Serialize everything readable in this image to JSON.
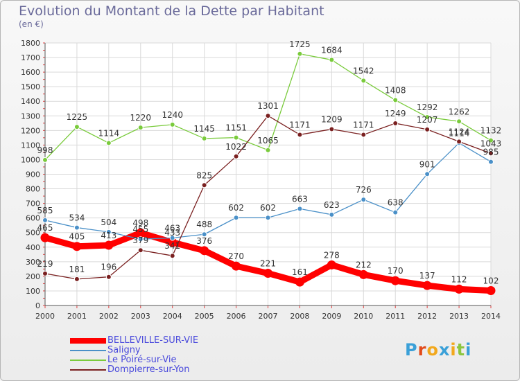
{
  "header": {
    "title": "Evolution du Montant de la Dette par Habitant",
    "subtitle": "(en €)"
  },
  "logo": {
    "text": "Proxiti",
    "colors": [
      "#3aa0d8",
      "#e24a1a",
      "#f2a81c",
      "#3aa0d8",
      "#f2a81c",
      "#8cc63f",
      "#3aa0d8"
    ]
  },
  "chart_data": {
    "type": "line",
    "title": "Evolution du Montant de la Dette par Habitant",
    "subtitle": "(en €)",
    "x": [
      2000,
      2001,
      2002,
      2003,
      2004,
      2005,
      2006,
      2007,
      2008,
      2009,
      2010,
      2011,
      2012,
      2013,
      2014
    ],
    "ylim": [
      0,
      1800
    ],
    "yticks": [
      0,
      100,
      200,
      300,
      400,
      500,
      600,
      700,
      800,
      900,
      1000,
      1100,
      1200,
      1300,
      1400,
      1500,
      1600,
      1700,
      1800
    ],
    "grid": true,
    "legend_position": "bottom-left",
    "series": [
      {
        "name": "BELLEVILLE-SUR-VIE",
        "color": "#ff0000",
        "values": [
          465,
          405,
          413,
          498,
          433,
          376,
          270,
          221,
          161,
          278,
          212,
          170,
          137,
          112,
          102
        ]
      },
      {
        "name": "Saligny",
        "color": "#4a90c8",
        "values": [
          585,
          534,
          504,
          455,
          463,
          488,
          602,
          602,
          663,
          623,
          726,
          638,
          901,
          1114,
          985
        ]
      },
      {
        "name": "Le Poiré-sur-Vie",
        "color": "#7acb3c",
        "values": [
          998,
          1225,
          1114,
          1220,
          1240,
          1145,
          1151,
          1065,
          1725,
          1684,
          1542,
          1408,
          1292,
          1262,
          1132
        ]
      },
      {
        "name": "Dompierre-sur-Yon",
        "color": "#7a2020",
        "values": [
          219,
          181,
          196,
          379,
          341,
          825,
          1022,
          1301,
          1171,
          1209,
          1171,
          1249,
          1207,
          1124,
          1043
        ]
      }
    ]
  }
}
